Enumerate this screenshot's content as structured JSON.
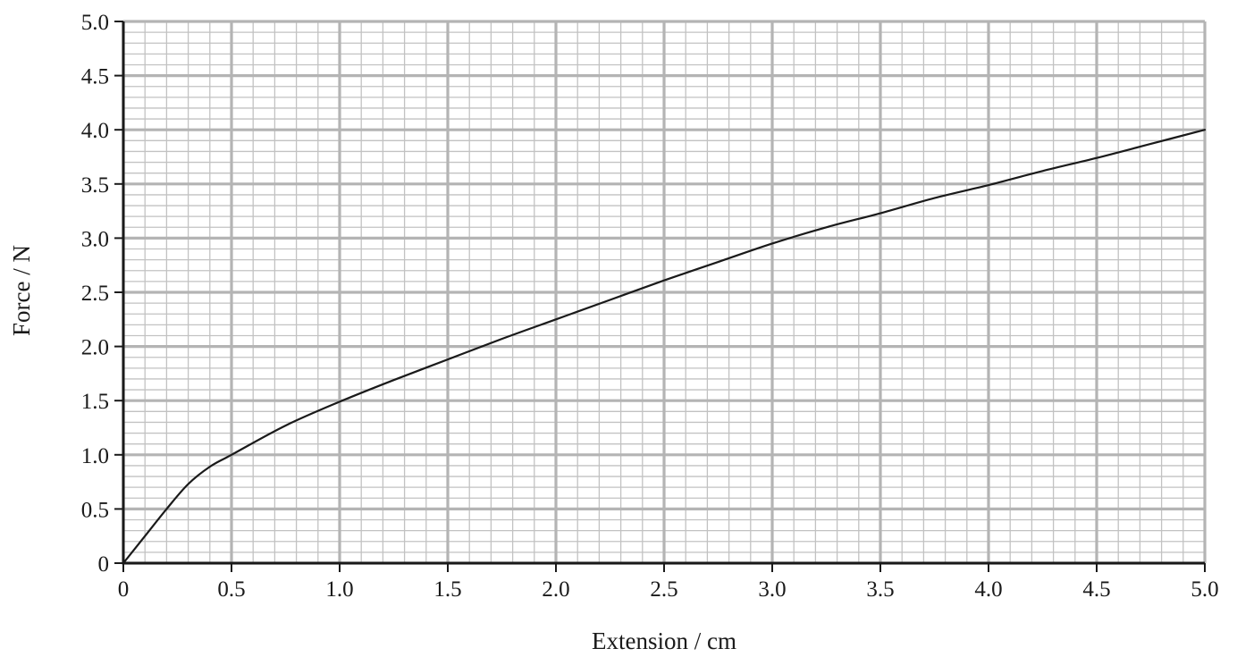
{
  "chart_data": {
    "type": "line",
    "title": "",
    "xlabel": "Extension / cm",
    "ylabel": "Force / N",
    "xlim": [
      0,
      5.0
    ],
    "ylim": [
      0,
      5.0
    ],
    "x_ticks": [
      "0",
      "0.5",
      "1.0",
      "1.5",
      "2.0",
      "2.5",
      "3.0",
      "3.5",
      "4.0",
      "4.5",
      "5.0"
    ],
    "y_ticks": [
      "0",
      "0.5",
      "1.0",
      "1.5",
      "2.0",
      "2.5",
      "3.0",
      "3.5",
      "4.0",
      "4.5",
      "5.0"
    ],
    "grid": true,
    "series": [
      {
        "x": [
          0,
          0.1,
          0.2,
          0.3,
          0.4,
          0.5,
          0.75,
          1.0,
          1.25,
          1.5,
          1.75,
          2.0,
          2.25,
          2.5,
          2.75,
          3.0,
          3.25,
          3.5,
          3.75,
          4.0,
          4.25,
          4.5,
          4.75,
          5.0
        ],
        "y": [
          0,
          0.25,
          0.5,
          0.73,
          0.89,
          1.0,
          1.27,
          1.49,
          1.69,
          1.88,
          2.07,
          2.25,
          2.43,
          2.61,
          2.78,
          2.95,
          3.1,
          3.23,
          3.37,
          3.49,
          3.62,
          3.74,
          3.87,
          4.0
        ],
        "color": "#1a1a1a"
      }
    ],
    "colors": {
      "minor_grid": "#c2c2c2",
      "major_grid": "#b4b4b4",
      "axis": "#1a1a1a"
    }
  }
}
